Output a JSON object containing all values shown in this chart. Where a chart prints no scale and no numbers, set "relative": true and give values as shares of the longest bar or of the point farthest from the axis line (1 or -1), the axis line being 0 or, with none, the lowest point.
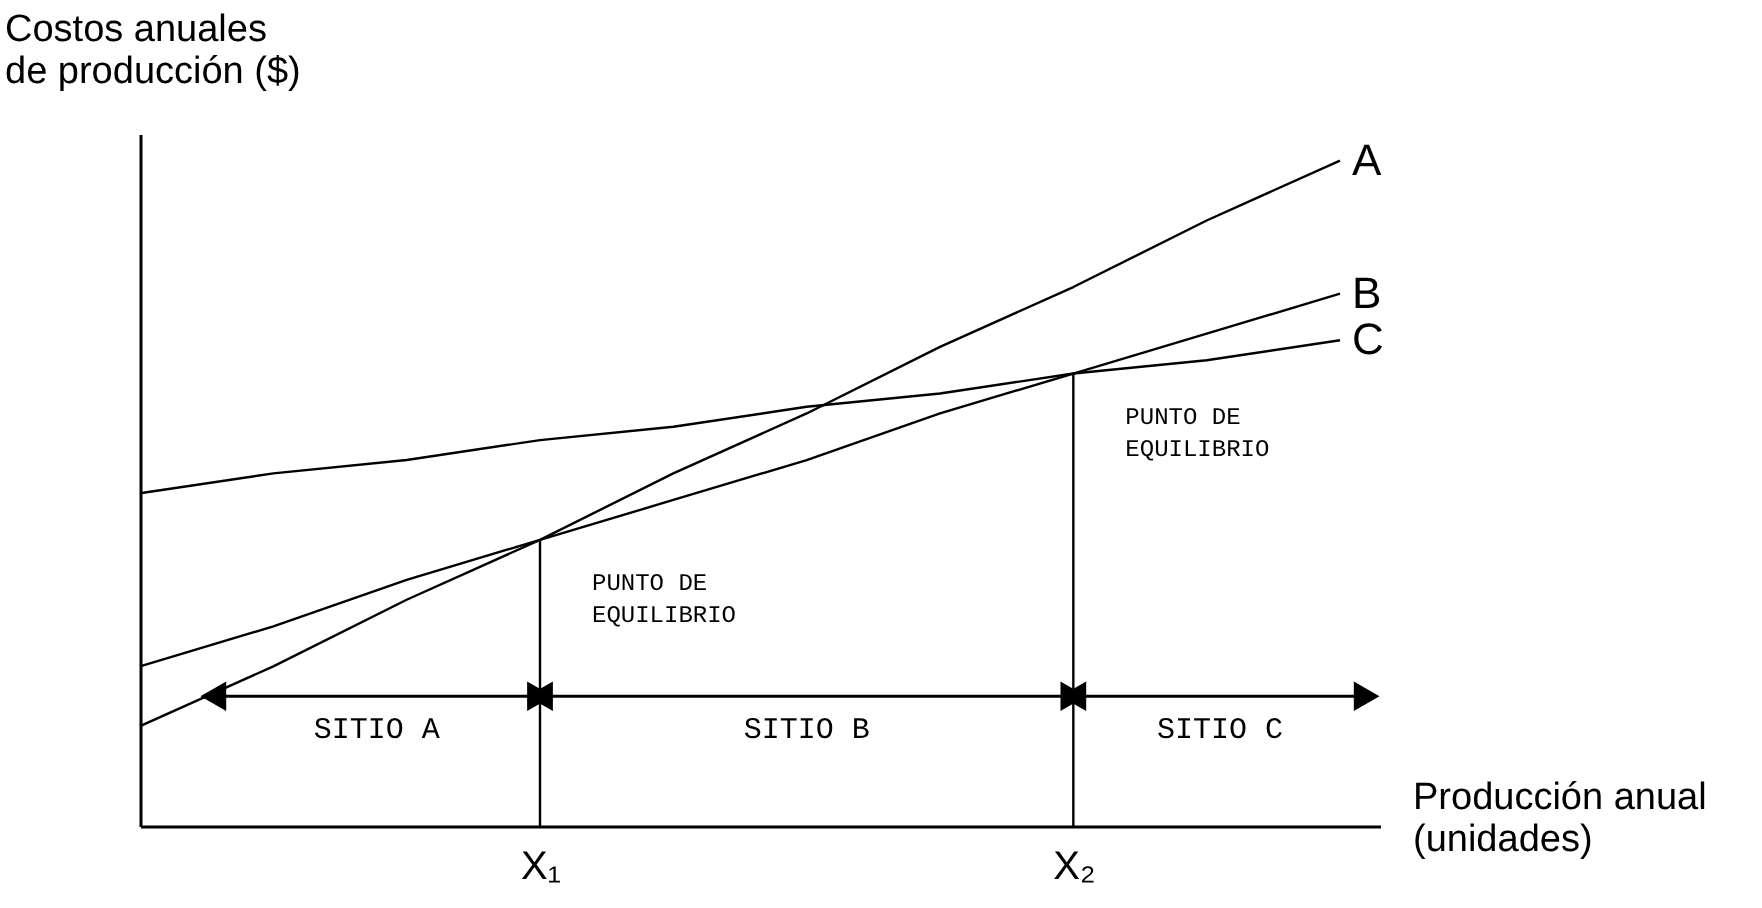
{
  "chart_data": {
    "type": "line",
    "relative": true,
    "ylabel": "Costos anuales\nde producción ($)",
    "xlabel": "Producción anual\n(unidades)",
    "categories": [
      null,
      null,
      null,
      "X₁",
      null,
      null,
      null,
      "X₂",
      null,
      null
    ],
    "series": [
      {
        "name": "A",
        "color": "#000000",
        "values": [
          0.15,
          0.24,
          0.34,
          0.43,
          0.53,
          0.62,
          0.72,
          0.81,
          0.91,
          1
        ]
      },
      {
        "name": "B",
        "color": "#000000",
        "values": [
          0.24,
          0.3,
          0.37,
          0.43,
          0.49,
          0.55,
          0.62,
          0.68,
          0.74,
          0.8
        ]
      },
      {
        "name": "C",
        "color": "#000000",
        "values": [
          0.5,
          0.53,
          0.55,
          0.58,
          0.6,
          0.63,
          0.65,
          0.68,
          0.7,
          0.73
        ]
      }
    ],
    "ref_lines": [
      {
        "axis": "x",
        "value": "X₁"
      },
      {
        "axis": "x",
        "value": "X₂"
      }
    ],
    "annotations": [
      {
        "text": "PUNTO DE\nEQUILIBRIO",
        "x": "X₁",
        "y": 0.43
      },
      {
        "text": "PUNTO DE\nEQUILIBRIO",
        "x": "X₂",
        "y": 0.68
      },
      "SITIO A",
      "SITIO B",
      "SITIO C"
    ],
    "grid": false
  }
}
